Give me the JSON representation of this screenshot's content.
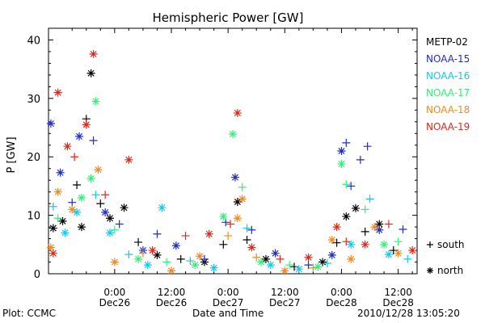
{
  "footer": {
    "left": "Plot: CCMC",
    "center": "Date and Time",
    "right": "2010/12/28 13:05:20"
  },
  "chart_data": {
    "type": "scatter",
    "title": "Hemispheric Power [GW]",
    "xlabel": "",
    "ylabel": "P [GW]",
    "ylim": [
      0,
      42
    ],
    "yticks": [
      0,
      10,
      20,
      30,
      40
    ],
    "xlim": [
      "2010-12-25T10:00",
      "2010-12-28T16:00"
    ],
    "xticks": [
      {
        "t": "2010-12-26T00:00",
        "label": "0:00",
        "date": "Dec26"
      },
      {
        "t": "2010-12-26T12:00",
        "label": "12:00",
        "date": "Dec26"
      },
      {
        "t": "2010-12-27T00:00",
        "label": "0:00",
        "date": "Dec27"
      },
      {
        "t": "2010-12-27T12:00",
        "label": "12:00",
        "date": "Dec27"
      },
      {
        "t": "2010-12-28T00:00",
        "label": "0:00",
        "date": "Dec28"
      },
      {
        "t": "2010-12-28T12:00",
        "label": "12:00",
        "date": "Dec28"
      }
    ],
    "marker_legend": [
      {
        "symbol": "+",
        "label": "south"
      },
      {
        "symbol": "*",
        "label": "north"
      }
    ],
    "series": [
      {
        "name": "METP-02",
        "color": "#000000",
        "points": [
          {
            "x": "2010-12-25T11:00",
            "y": 7.8,
            "m": "*"
          },
          {
            "x": "2010-12-25T13:00",
            "y": 9,
            "m": "*"
          },
          {
            "x": "2010-12-25T16:00",
            "y": 15.2,
            "m": "+"
          },
          {
            "x": "2010-12-25T17:00",
            "y": 8,
            "m": "*"
          },
          {
            "x": "2010-12-25T18:00",
            "y": 26.5,
            "m": "+"
          },
          {
            "x": "2010-12-25T19:00",
            "y": 34.3,
            "m": "*"
          },
          {
            "x": "2010-12-25T21:00",
            "y": 12,
            "m": "+"
          },
          {
            "x": "2010-12-25T23:00",
            "y": 9.5,
            "m": "*"
          },
          {
            "x": "2010-12-26T02:00",
            "y": 11.3,
            "m": "*"
          },
          {
            "x": "2010-12-26T05:00",
            "y": 5.4,
            "m": "+"
          },
          {
            "x": "2010-12-26T09:00",
            "y": 3.2,
            "m": "*"
          },
          {
            "x": "2010-12-26T14:00",
            "y": 2.5,
            "m": "+"
          },
          {
            "x": "2010-12-26T19:00",
            "y": 2,
            "m": "*"
          },
          {
            "x": "2010-12-26T23:00",
            "y": 5,
            "m": "+"
          },
          {
            "x": "2010-12-27T02:00",
            "y": 12.3,
            "m": "*"
          },
          {
            "x": "2010-12-27T04:00",
            "y": 5.8,
            "m": "+"
          },
          {
            "x": "2010-12-27T08:00",
            "y": 2.5,
            "m": "*"
          },
          {
            "x": "2010-12-27T14:00",
            "y": 1.2,
            "m": "+"
          },
          {
            "x": "2010-12-27T20:00",
            "y": 2,
            "m": "*"
          },
          {
            "x": "2010-12-27T23:00",
            "y": 5.3,
            "m": "+"
          },
          {
            "x": "2010-12-28T01:00",
            "y": 9.8,
            "m": "*"
          },
          {
            "x": "2010-12-28T03:00",
            "y": 11.2,
            "m": "*"
          },
          {
            "x": "2010-12-28T05:00",
            "y": 7.2,
            "m": "+"
          },
          {
            "x": "2010-12-28T08:00",
            "y": 8.5,
            "m": "*"
          },
          {
            "x": "2010-12-28T11:00",
            "y": 4,
            "m": "+"
          }
        ]
      },
      {
        "name": "NOAA-15",
        "color": "#1f2cc8",
        "points": [
          {
            "x": "2010-12-25T10:30",
            "y": 25.7,
            "m": "*"
          },
          {
            "x": "2010-12-25T12:30",
            "y": 17.3,
            "m": "*"
          },
          {
            "x": "2010-12-25T15:00",
            "y": 12.2,
            "m": "+"
          },
          {
            "x": "2010-12-25T16:30",
            "y": 23.5,
            "m": "*"
          },
          {
            "x": "2010-12-25T19:30",
            "y": 22.8,
            "m": "+"
          },
          {
            "x": "2010-12-25T22:00",
            "y": 10.5,
            "m": "*"
          },
          {
            "x": "2010-12-26T01:00",
            "y": 8.5,
            "m": "+"
          },
          {
            "x": "2010-12-26T06:00",
            "y": 4,
            "m": "*"
          },
          {
            "x": "2010-12-26T09:00",
            "y": 6.8,
            "m": "+"
          },
          {
            "x": "2010-12-26T13:00",
            "y": 4.8,
            "m": "*"
          },
          {
            "x": "2010-12-26T19:00",
            "y": 2.5,
            "m": "+"
          },
          {
            "x": "2010-12-26T23:30",
            "y": 8.8,
            "m": "+"
          },
          {
            "x": "2010-12-27T01:30",
            "y": 16.5,
            "m": "*"
          },
          {
            "x": "2010-12-27T05:00",
            "y": 7.5,
            "m": "+"
          },
          {
            "x": "2010-12-27T10:00",
            "y": 3.5,
            "m": "*"
          },
          {
            "x": "2010-12-27T17:00",
            "y": 1.5,
            "m": "+"
          },
          {
            "x": "2010-12-27T22:00",
            "y": 3.2,
            "m": "*"
          },
          {
            "x": "2010-12-28T00:00",
            "y": 21,
            "m": "*"
          },
          {
            "x": "2010-12-28T01:00",
            "y": 22.4,
            "m": "+"
          },
          {
            "x": "2010-12-28T02:00",
            "y": 15,
            "m": "+"
          },
          {
            "x": "2010-12-28T04:00",
            "y": 19.5,
            "m": "+"
          },
          {
            "x": "2010-12-28T05:30",
            "y": 21.8,
            "m": "+"
          },
          {
            "x": "2010-12-28T08:00",
            "y": 7.5,
            "m": "*"
          },
          {
            "x": "2010-12-28T13:00",
            "y": 7.6,
            "m": "+"
          }
        ]
      },
      {
        "name": "NOAA-16",
        "color": "#16c8e8",
        "points": [
          {
            "x": "2010-12-25T11:00",
            "y": 11.5,
            "m": "+"
          },
          {
            "x": "2010-12-25T13:30",
            "y": 7,
            "m": "*"
          },
          {
            "x": "2010-12-25T16:00",
            "y": 10.5,
            "m": "*"
          },
          {
            "x": "2010-12-25T20:00",
            "y": 13.5,
            "m": "+"
          },
          {
            "x": "2010-12-25T23:00",
            "y": 7,
            "m": "*"
          },
          {
            "x": "2010-12-26T03:00",
            "y": 3.3,
            "m": "+"
          },
          {
            "x": "2010-12-26T07:00",
            "y": 1.5,
            "m": "*"
          },
          {
            "x": "2010-12-26T10:00",
            "y": 11.3,
            "m": "*"
          },
          {
            "x": "2010-12-26T16:00",
            "y": 2.2,
            "m": "+"
          },
          {
            "x": "2010-12-26T21:00",
            "y": 1,
            "m": "*"
          },
          {
            "x": "2010-12-27T04:00",
            "y": 7.8,
            "m": "+"
          },
          {
            "x": "2010-12-27T09:00",
            "y": 1.5,
            "m": "*"
          },
          {
            "x": "2010-12-27T15:00",
            "y": 0.8,
            "m": "*"
          },
          {
            "x": "2010-12-27T21:00",
            "y": 1.8,
            "m": "+"
          },
          {
            "x": "2010-12-28T02:00",
            "y": 5,
            "m": "*"
          },
          {
            "x": "2010-12-28T06:00",
            "y": 12.8,
            "m": "+"
          },
          {
            "x": "2010-12-28T10:00",
            "y": 3.3,
            "m": "*"
          },
          {
            "x": "2010-12-28T14:00",
            "y": 2.5,
            "m": "+"
          }
        ]
      },
      {
        "name": "NOAA-17",
        "color": "#33ee77",
        "points": [
          {
            "x": "2010-12-25T12:00",
            "y": 9.5,
            "m": "+"
          },
          {
            "x": "2010-12-25T17:00",
            "y": 13,
            "m": "*"
          },
          {
            "x": "2010-12-25T19:00",
            "y": 16.3,
            "m": "*"
          },
          {
            "x": "2010-12-25T20:00",
            "y": 29.5,
            "m": "*"
          },
          {
            "x": "2010-12-26T00:00",
            "y": 7.5,
            "m": "+"
          },
          {
            "x": "2010-12-26T05:00",
            "y": 2.5,
            "m": "*"
          },
          {
            "x": "2010-12-26T11:00",
            "y": 2,
            "m": "+"
          },
          {
            "x": "2010-12-26T17:00",
            "y": 1.5,
            "m": "*"
          },
          {
            "x": "2010-12-26T23:00",
            "y": 9.8,
            "m": "*"
          },
          {
            "x": "2010-12-27T01:00",
            "y": 23.9,
            "m": "*"
          },
          {
            "x": "2010-12-27T03:00",
            "y": 14.8,
            "m": "+"
          },
          {
            "x": "2010-12-27T07:00",
            "y": 2,
            "m": "*"
          },
          {
            "x": "2010-12-27T13:00",
            "y": 1.5,
            "m": "+"
          },
          {
            "x": "2010-12-27T19:00",
            "y": 1.2,
            "m": "*"
          },
          {
            "x": "2010-12-28T00:00",
            "y": 18.8,
            "m": "*"
          },
          {
            "x": "2010-12-28T01:00",
            "y": 15.3,
            "m": "+"
          },
          {
            "x": "2010-12-28T05:00",
            "y": 11,
            "m": "+"
          },
          {
            "x": "2010-12-28T09:00",
            "y": 5,
            "m": "*"
          },
          {
            "x": "2010-12-28T12:00",
            "y": 5.5,
            "m": "+"
          }
        ]
      },
      {
        "name": "NOAA-18",
        "color": "#f08a1e",
        "points": [
          {
            "x": "2010-12-25T10:30",
            "y": 4.5,
            "m": "*"
          },
          {
            "x": "2010-12-25T12:00",
            "y": 14,
            "m": "*"
          },
          {
            "x": "2010-12-25T15:00",
            "y": 11,
            "m": "*"
          },
          {
            "x": "2010-12-25T20:30",
            "y": 17.8,
            "m": "*"
          },
          {
            "x": "2010-12-26T00:00",
            "y": 2,
            "m": "*"
          },
          {
            "x": "2010-12-26T06:00",
            "y": 3.5,
            "m": "+"
          },
          {
            "x": "2010-12-26T12:00",
            "y": 0.5,
            "m": "*"
          },
          {
            "x": "2010-12-26T18:00",
            "y": 3,
            "m": "*"
          },
          {
            "x": "2010-12-27T00:00",
            "y": 6.5,
            "m": "+"
          },
          {
            "x": "2010-12-27T02:00",
            "y": 9.5,
            "m": "*"
          },
          {
            "x": "2010-12-27T03:00",
            "y": 12.8,
            "m": "*"
          },
          {
            "x": "2010-12-27T06:00",
            "y": 2.8,
            "m": "+"
          },
          {
            "x": "2010-12-27T12:00",
            "y": 0.5,
            "m": "*"
          },
          {
            "x": "2010-12-27T18:00",
            "y": 1,
            "m": "+"
          },
          {
            "x": "2010-12-27T22:00",
            "y": 5.8,
            "m": "*"
          },
          {
            "x": "2010-12-28T02:00",
            "y": 2.5,
            "m": "*"
          },
          {
            "x": "2010-12-28T07:00",
            "y": 8,
            "m": "*"
          },
          {
            "x": "2010-12-28T12:00",
            "y": 3.5,
            "m": "*"
          }
        ]
      },
      {
        "name": "NOAA-19",
        "color": "#e02818",
        "points": [
          {
            "x": "2010-12-25T11:00",
            "y": 3.5,
            "m": "*"
          },
          {
            "x": "2010-12-25T12:00",
            "y": 31,
            "m": "*"
          },
          {
            "x": "2010-12-25T14:00",
            "y": 21.8,
            "m": "*"
          },
          {
            "x": "2010-12-25T15:30",
            "y": 20,
            "m": "+"
          },
          {
            "x": "2010-12-25T18:00",
            "y": 25.5,
            "m": "*"
          },
          {
            "x": "2010-12-25T19:30",
            "y": 37.6,
            "m": "*"
          },
          {
            "x": "2010-12-25T22:00",
            "y": 13.5,
            "m": "+"
          },
          {
            "x": "2010-12-26T03:00",
            "y": 19.5,
            "m": "*"
          },
          {
            "x": "2010-12-26T08:00",
            "y": 4,
            "m": "*"
          },
          {
            "x": "2010-12-26T15:00",
            "y": 6.5,
            "m": "+"
          },
          {
            "x": "2010-12-26T20:00",
            "y": 6.8,
            "m": "*"
          },
          {
            "x": "2010-12-27T00:30",
            "y": 8.5,
            "m": "+"
          },
          {
            "x": "2010-12-27T02:00",
            "y": 27.5,
            "m": "*"
          },
          {
            "x": "2010-12-27T05:00",
            "y": 4.5,
            "m": "*"
          },
          {
            "x": "2010-12-27T11:00",
            "y": 2.5,
            "m": "+"
          },
          {
            "x": "2010-12-27T17:00",
            "y": 2.8,
            "m": "*"
          },
          {
            "x": "2010-12-27T23:00",
            "y": 8,
            "m": "*"
          },
          {
            "x": "2010-12-28T01:00",
            "y": 5.5,
            "m": "+"
          },
          {
            "x": "2010-12-28T05:00",
            "y": 5,
            "m": "*"
          },
          {
            "x": "2010-12-28T10:00",
            "y": 8.5,
            "m": "+"
          },
          {
            "x": "2010-12-28T15:00",
            "y": 4,
            "m": "*"
          }
        ]
      }
    ]
  }
}
